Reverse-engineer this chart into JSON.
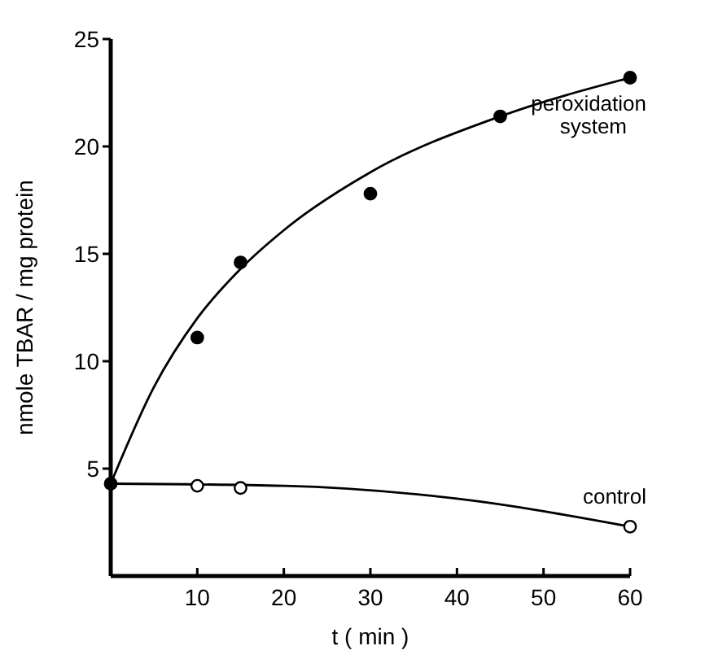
{
  "chart_data": {
    "type": "scatter",
    "xlabel": "t ( min )",
    "ylabel": "nmole TBAR / mg protein",
    "xlim": [
      0,
      60
    ],
    "ylim": [
      0,
      25
    ],
    "xticks": [
      10,
      20,
      30,
      40,
      50,
      60
    ],
    "yticks": [
      5,
      10,
      15,
      20,
      25
    ],
    "grid": false,
    "marker": "circle",
    "series": [
      {
        "name": "peroxidation system",
        "color": "#000000",
        "x": [
          0,
          10,
          15,
          30,
          45,
          60
        ],
        "values": [
          4.3,
          11.1,
          14.6,
          17.8,
          21.4,
          23.2
        ]
      },
      {
        "name": "control",
        "color": "#ffffff",
        "x": [
          10,
          15,
          60
        ],
        "values": [
          4.2,
          4.1,
          2.3
        ]
      },
      {
        "type": "line",
        "color": "#000000",
        "marker": "none",
        "x": [
          0,
          5,
          10,
          15,
          20,
          30,
          45,
          60
        ],
        "values": [
          4.3,
          8.8,
          12.0,
          14.3,
          16.1,
          18.8,
          21.4,
          23.2
        ]
      },
      {
        "type": "line",
        "color": "#000000",
        "marker": "none",
        "x": [
          0,
          20,
          40,
          60
        ],
        "values": [
          4.3,
          4.2,
          3.6,
          2.3
        ]
      }
    ]
  }
}
